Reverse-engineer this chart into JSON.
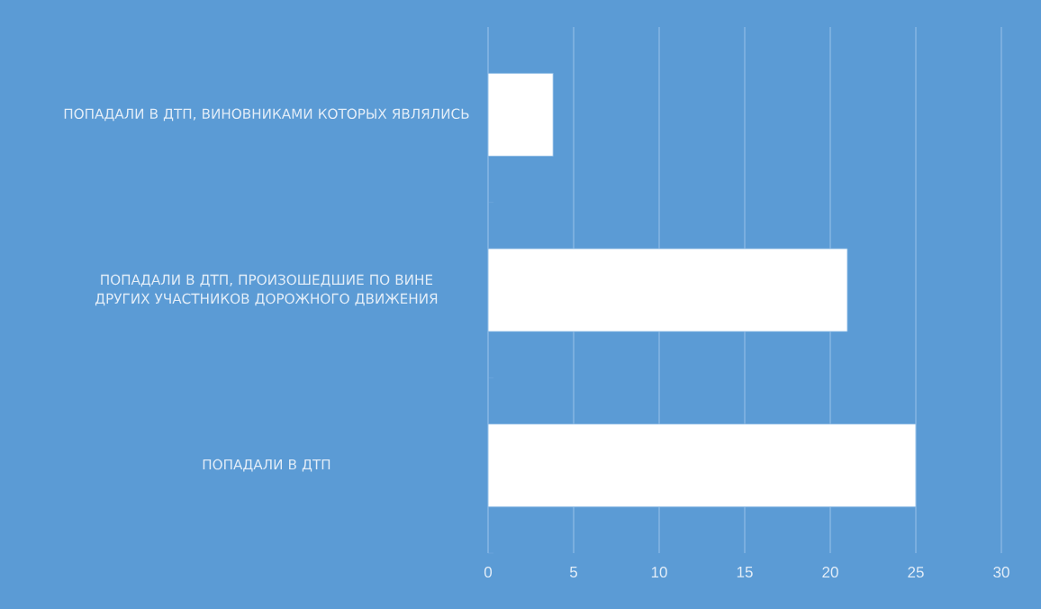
{
  "chart_data": {
    "type": "bar",
    "orientation": "horizontal",
    "categories": [
      "ПОПАДАЛИ В ДТП, ВИНОВНИКАМИ КОТОРЫХ ЯВЛЯЛИСЬ",
      "ПОПАДАЛИ В ДТП, ПРОИЗОШЕДШИЕ ПО ВИНЕ ДРУГИХ УЧАСТНИКОВ ДОРОЖНОГО ДВИЖЕНИЯ",
      "ПОПАДАЛИ В ДТП"
    ],
    "values": [
      3.8,
      21,
      25
    ],
    "color": "#ffffff",
    "xlim": [
      0,
      30
    ],
    "xticks": [
      0,
      5,
      10,
      15,
      20,
      25,
      30
    ],
    "grid": "x"
  }
}
